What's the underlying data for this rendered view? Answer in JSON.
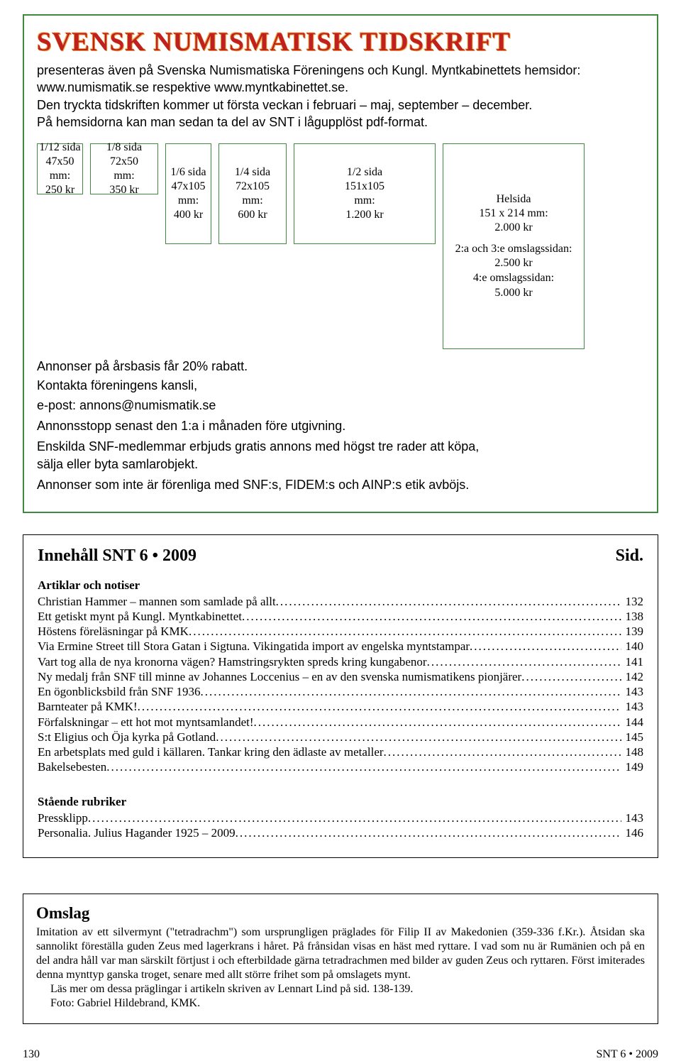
{
  "masthead": "SVENSK NUMISMATISK TIDSKRIFT",
  "intro": {
    "line1": "presenteras även på Svenska Numismatiska Föreningens och Kungl. Myntkabinettets hemsidor:",
    "line2": "www.numismatik.se respektive www.myntkabinettet.se.",
    "line3": "Den tryckta tidskriften kommer ut första veckan i februari – maj, september – december.",
    "line4": "På hemsidorna kan man sedan ta del av SNT i lågupplöst pdf-format."
  },
  "sizes": {
    "s1_12": {
      "label": "1/12 sida",
      "dim": "47x50",
      "unit": "mm:",
      "price": "250 kr"
    },
    "s1_8": {
      "label": "1/8 sida",
      "dim": "72x50",
      "unit": "mm:",
      "price": "350 kr"
    },
    "s1_6": {
      "label": "1/6 sida",
      "dim": "47x105",
      "unit": "mm:",
      "price": "400 kr"
    },
    "s1_4": {
      "label": "1/4 sida",
      "dim": "72x105",
      "unit": "mm:",
      "price": "600 kr"
    },
    "s1_2": {
      "label": "1/2 sida",
      "dim": "151x105",
      "unit": "mm:",
      "price": "1.200 kr"
    },
    "full": {
      "label": "Helsida",
      "dim": "151 x 214 mm:",
      "price": "2.000 kr"
    }
  },
  "extras": {
    "cov23_label": "2:a och 3:e omslags­sidan:",
    "cov23_price": "2.500 kr",
    "cov4_label": "4:e omslagssidan:",
    "cov4_price": "5.000 kr"
  },
  "notes": {
    "n1": "Annonser på årsbasis får 20% rabatt.",
    "n2a": "Kontakta föreningens kansli,",
    "n2b": "e-post: annons@numismatik.se",
    "n3": "Annonsstopp senast den 1:a i månaden före utgivning.",
    "n4": "Enskilda SNF-medlemmar erbjuds gratis annons med högst tre rader att köpa, sälja eller byta samlarobjekt.",
    "n5": "Annonser som inte är förenliga med SNF:s, FIDEM:s och AINP:s etik avböjs."
  },
  "toc": {
    "heading": "Innehåll SNT 6 • 2009",
    "sid": "Sid.",
    "sec1": "Artiklar och notiser",
    "items1": [
      {
        "t": "Christian Hammer – mannen som samlade på allt",
        "p": "132"
      },
      {
        "t": "Ett getiskt mynt på Kungl. Myntkabinettet",
        "p": "138"
      },
      {
        "t": "Höstens föreläsningar på KMK",
        "p": "139"
      },
      {
        "t": "Via Ermine Street till Stora Gatan i Sigtuna. Vikingatida import av engelska myntstampar",
        "p": "140"
      },
      {
        "t": "Vart tog alla de nya kronorna vägen? Hamstringsrykten spreds kring kungabenor",
        "p": "141"
      },
      {
        "t": "Ny medalj från SNF till minne av Johannes Loccenius – en av den svenska numismatikens pionjärer",
        "p": "142"
      },
      {
        "t": "En ögonblicksbild från SNF 1936",
        "p": "143"
      },
      {
        "t": "Barnteater på KMK!",
        "p": "143"
      },
      {
        "t": "Förfalskningar – ett hot mot myntsamlandet!",
        "p": "144"
      },
      {
        "t": "S:t Eligius och Öja kyrka på Gotland",
        "p": "145"
      },
      {
        "t": "En arbetsplats med guld i källaren. Tankar kring den ädlaste av metaller",
        "p": "148"
      },
      {
        "t": "Bakelsebesten",
        "p": "149"
      }
    ],
    "sec2": "Stående rubriker",
    "items2": [
      {
        "t": "Pressklipp",
        "p": "143"
      },
      {
        "t": "Personalia. Julius Hagander 1925 – 2009",
        "p": "146"
      }
    ]
  },
  "omslag": {
    "title": "Omslag",
    "body": "Imitation av ett silvermynt (\"tetradrachm\") som ursprungligen präglades för Filip II av Makedonien (359-336 f.Kr.). Åtsidan ska sannolikt föreställa guden Zeus med lagerkrans i håret. På frånsidan visas en häst med ryttare. I vad som nu är Rumänien och på en del andra håll var man särskilt förtjust i och efterbildade gärna tetradrachmen med bilder av guden Zeus och ryttaren. Först imiterades denna mynttyp ganska troget, senare med allt större frihet som på omslagets mynt.",
    "more": "Läs mer om dessa präglingar i artikeln skriven av Lennart Lind på sid. 138-139.",
    "photo": "Foto: Gabriel Hildebrand, KMK."
  },
  "footer": {
    "page": "130",
    "issue": "SNT 6 • 2009"
  }
}
